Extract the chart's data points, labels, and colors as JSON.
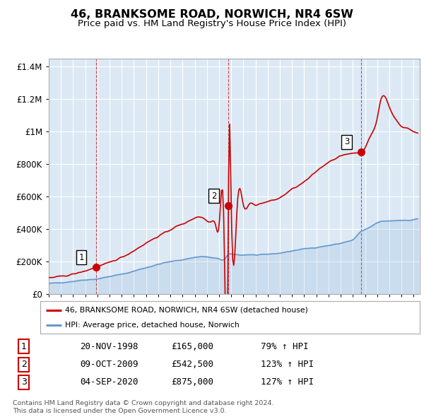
{
  "title": "46, BRANKSOME ROAD, NORWICH, NR4 6SW",
  "subtitle": "Price paid vs. HM Land Registry's House Price Index (HPI)",
  "title_fontsize": 11.5,
  "subtitle_fontsize": 9.5,
  "line1_color": "#cc0000",
  "line2_color": "#6699cc",
  "marker_color": "#cc0000",
  "background_color": "#ffffff",
  "plot_bg_color": "#dce9f5",
  "grid_color": "#ffffff",
  "ylabel_ticks": [
    "£0",
    "£200K",
    "£400K",
    "£600K",
    "£800K",
    "£1M",
    "£1.2M",
    "£1.4M"
  ],
  "ytick_values": [
    0,
    200000,
    400000,
    600000,
    800000,
    1000000,
    1200000,
    1400000
  ],
  "ylim": [
    0,
    1450000
  ],
  "xlim_start": 1995.0,
  "xlim_end": 2025.5,
  "legend1_label": "46, BRANKSOME ROAD, NORWICH, NR4 6SW (detached house)",
  "legend2_label": "HPI: Average price, detached house, Norwich",
  "transactions": [
    {
      "num": 1,
      "date": "20-NOV-1998",
      "price": 165000,
      "pct": "79%",
      "direction": "↑",
      "year": 1998.88
    },
    {
      "num": 2,
      "date": "09-OCT-2009",
      "price": 542500,
      "pct": "123%",
      "direction": "↑",
      "year": 2009.77
    },
    {
      "num": 3,
      "date": "04-SEP-2020",
      "price": 875000,
      "pct": "127%",
      "direction": "↑",
      "year": 2020.68
    }
  ],
  "footer": [
    "Contains HM Land Registry data © Crown copyright and database right 2024.",
    "This data is licensed under the Open Government Licence v3.0."
  ],
  "sale1_year": 1998.88,
  "sale1_price": 165000,
  "sale2_year": 2009.77,
  "sale2_price": 542500,
  "sale3_year": 2020.68,
  "sale3_price": 875000
}
